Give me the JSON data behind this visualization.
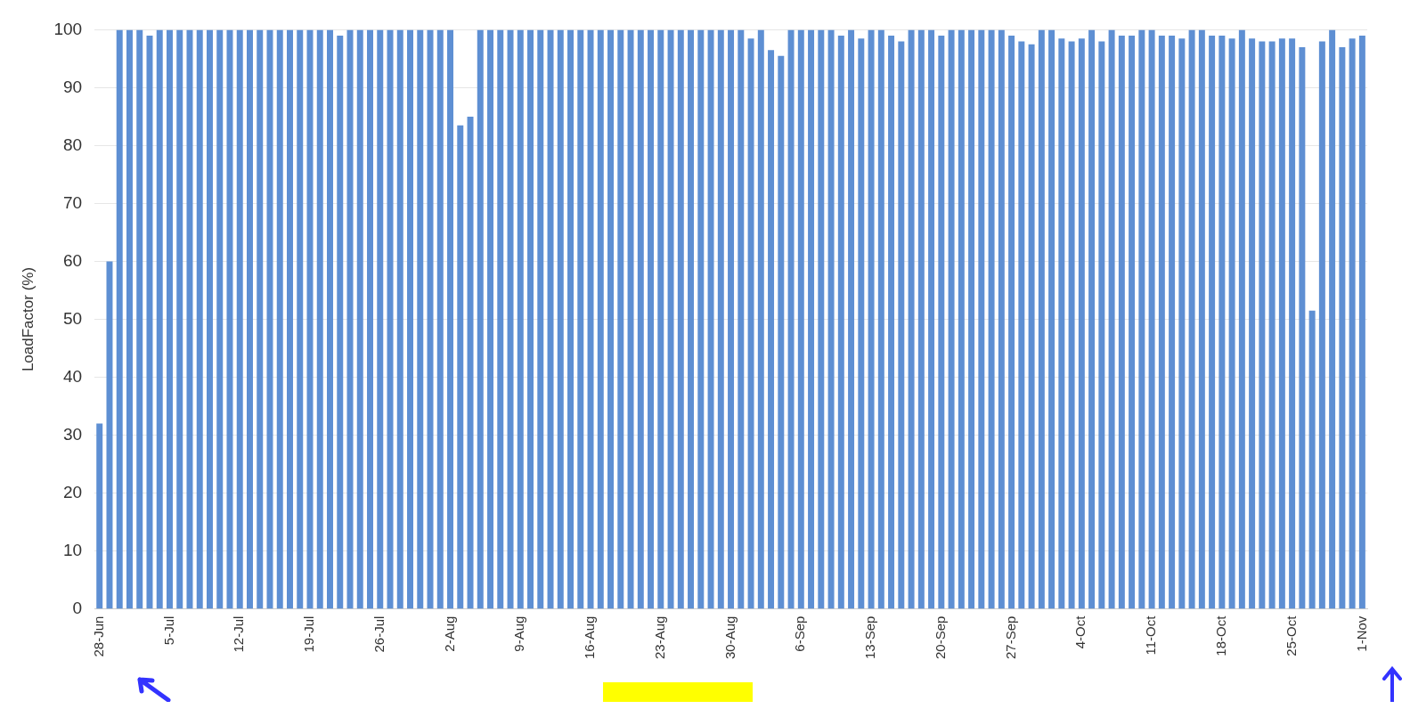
{
  "chart_data": {
    "type": "bar",
    "ylabel": "LoadFactor (%)",
    "categories": [
      "28-Jun",
      null,
      null,
      null,
      null,
      null,
      null,
      "5-Jul",
      null,
      null,
      null,
      null,
      null,
      null,
      "12-Jul",
      null,
      null,
      null,
      null,
      null,
      null,
      "19-Jul",
      null,
      null,
      null,
      null,
      null,
      null,
      "26-Jul",
      null,
      null,
      null,
      null,
      null,
      null,
      "2-Aug",
      null,
      null,
      null,
      null,
      null,
      null,
      "9-Aug",
      null,
      null,
      null,
      null,
      null,
      null,
      "16-Aug",
      null,
      null,
      null,
      null,
      null,
      null,
      "23-Aug",
      null,
      null,
      null,
      null,
      null,
      null,
      "30-Aug",
      null,
      null,
      null,
      null,
      null,
      null,
      "6-Sep",
      null,
      null,
      null,
      null,
      null,
      null,
      "13-Sep",
      null,
      null,
      null,
      null,
      null,
      null,
      "20-Sep",
      null,
      null,
      null,
      null,
      null,
      null,
      "27-Sep",
      null,
      null,
      null,
      null,
      null,
      null,
      "4-Oct",
      null,
      null,
      null,
      null,
      null,
      null,
      "11-Oct",
      null,
      null,
      null,
      null,
      null,
      null,
      "18-Oct",
      null,
      null,
      null,
      null,
      null,
      null,
      "25-Oct",
      null,
      null,
      null,
      null,
      null,
      null,
      "1-Nov"
    ],
    "values": [
      32,
      60,
      100,
      100,
      100,
      99,
      100,
      100,
      100,
      100,
      100,
      100,
      100,
      100,
      100,
      100,
      100,
      100,
      100,
      100,
      100,
      100,
      100,
      100,
      99,
      100,
      100,
      100,
      100,
      100,
      100,
      100,
      100,
      100,
      100,
      100,
      83.5,
      85,
      100,
      100,
      100,
      100,
      100,
      100,
      100,
      100,
      100,
      100,
      100,
      100,
      100,
      100,
      100,
      100,
      100,
      100,
      100,
      100,
      100,
      100,
      100,
      100,
      100,
      100,
      100,
      98.5,
      100,
      96.5,
      95.5,
      100,
      100,
      100,
      100,
      100,
      99,
      100,
      98.5,
      100,
      100,
      99,
      98,
      100,
      100,
      100,
      99,
      100,
      100,
      100,
      100,
      100,
      100,
      99,
      98,
      97.5,
      100,
      100,
      98.5,
      98,
      98.5,
      100,
      98,
      100,
      99,
      99,
      100,
      100,
      99,
      99,
      98.5,
      100,
      100,
      99,
      99,
      98.5,
      100,
      98.5,
      98,
      98,
      98.5,
      98.5,
      97,
      51.5,
      98,
      100,
      97,
      98.5,
      99
    ],
    "color": "#5e8fd3",
    "ylim": [
      0,
      100
    ],
    "yticks": [
      0,
      10,
      20,
      30,
      40,
      50,
      60,
      70,
      80,
      90,
      100
    ],
    "grid": "y"
  }
}
